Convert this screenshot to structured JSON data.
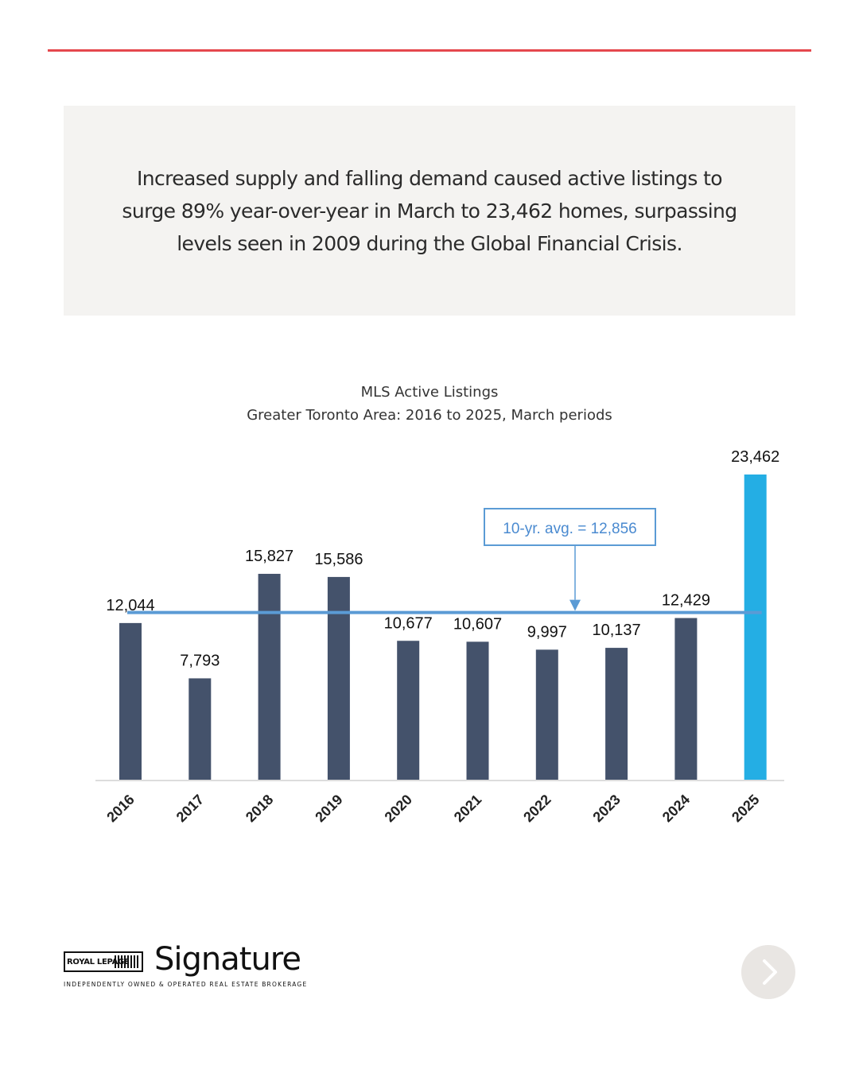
{
  "intro": {
    "text": "Increased supply and falling demand caused active listings to surge 89% year-over-year in March to 23,462 homes, surpassing levels seen in 2009 during the Global Financial Crisis."
  },
  "chart_data": {
    "type": "bar",
    "title": "MLS Active Listings",
    "subtitle": "Greater Toronto Area: 2016 to 2025, March periods",
    "categories": [
      "2016",
      "2017",
      "2018",
      "2019",
      "2020",
      "2021",
      "2022",
      "2023",
      "2024",
      "2025"
    ],
    "values": [
      12044,
      7793,
      15827,
      15586,
      10677,
      10607,
      9997,
      10137,
      12429,
      23462
    ],
    "value_labels": [
      "12,044",
      "7,793",
      "15,827",
      "15,586",
      "10,677",
      "10,607",
      "9,997",
      "10,137",
      "12,429",
      "23,462"
    ],
    "highlight_category": "2025",
    "ylim": [
      0,
      23462
    ],
    "grid": false,
    "average": {
      "value": 12856,
      "label": "10-yr. avg. = 12,856"
    },
    "colors": {
      "bar": "#44526b",
      "highlight": "#24aee4",
      "average": "#5b9bd5"
    }
  },
  "footer": {
    "logo_box": "ROYAL LEPAGE",
    "logo_name": "Signature",
    "tagline": "INDEPENDENTLY OWNED & OPERATED REAL ESTATE BROKERAGE",
    "next_icon": "chevron-right-icon"
  }
}
